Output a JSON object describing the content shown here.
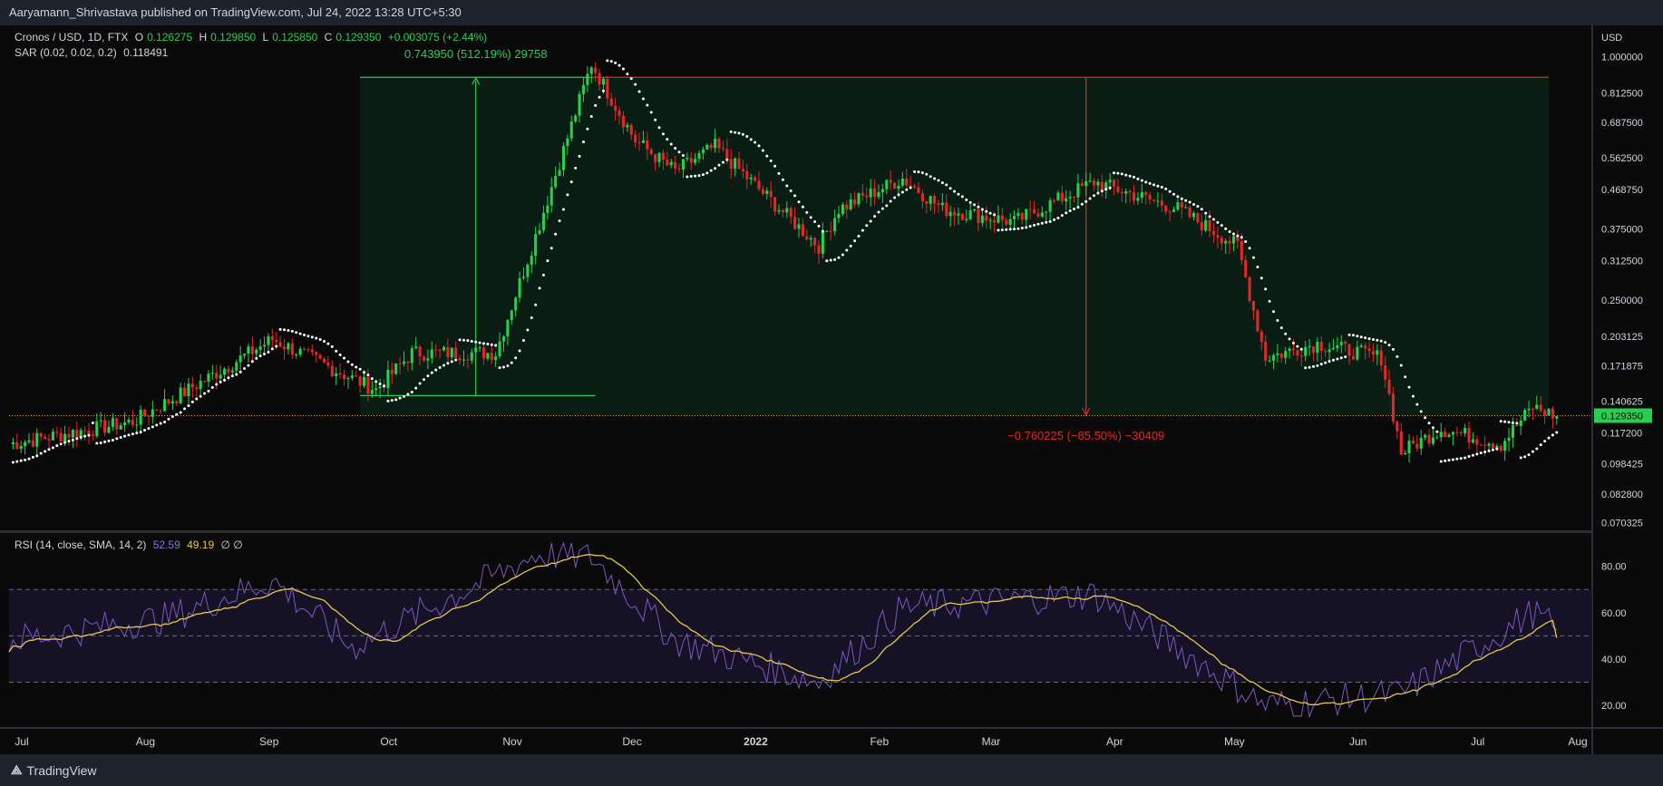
{
  "header": {
    "published": "Aaryamann_Shrivastava published on TradingView.com, Jul 24, 2022 13:28 UTC+5:30"
  },
  "legend": {
    "symbol": "Cronos / USD, 1D, FTX",
    "o_label": "O",
    "o_value": "0.126275",
    "h_label": "H",
    "h_value": "0.129850",
    "l_label": "L",
    "l_value": "0.125850",
    "c_label": "C",
    "c_value": "0.129350",
    "change": "+0.003075 (+2.44%)",
    "sar_label": "SAR (0.02, 0.02, 0.2)",
    "sar_value": "0.118491",
    "rsi_label": "RSI (14, close, SMA, 14, 2)",
    "rsi_value": "52.59",
    "rsi_ma_value": "49.19",
    "rsi_extra": "∅ ∅"
  },
  "price_axis": {
    "currency": "USD",
    "ticks": [
      "1.000000",
      "0.812500",
      "0.687500",
      "0.562500",
      "0.468750",
      "0.375000",
      "0.312500",
      "0.250000",
      "0.203125",
      "0.171875",
      "0.140625",
      "0.117200",
      "0.098425",
      "0.082800",
      "0.070325"
    ],
    "last_price": "0.129350"
  },
  "rsi_axis": {
    "ticks": [
      "80.00",
      "60.00",
      "40.00",
      "20.00"
    ]
  },
  "time_axis": {
    "ticks": [
      "Jul",
      "Aug",
      "Sep",
      "Oct",
      "Nov",
      "Dec",
      "2022",
      "Feb",
      "Mar",
      "Apr",
      "May",
      "Jun",
      "Jul",
      "Aug"
    ]
  },
  "annotations": {
    "up_measure": "0.743950 (512.19%) 29758",
    "down_measure": "−0.760225 (−85.50%) −30409"
  },
  "footer": {
    "brand": "TradingView"
  },
  "colors": {
    "background": "#131722",
    "up": "#26d04e",
    "down": "#e32626",
    "sar": "#ffffff",
    "rsi": "#7e57c2",
    "rsi_ma": "#e6c84a"
  },
  "chart_data": {
    "type": "candlestick",
    "symbol": "Cronos / USD",
    "interval": "1D",
    "scale": "log",
    "ylim": [
      0.068,
      1.1
    ],
    "x_range": [
      "2021-07-01",
      "2022-08-01"
    ],
    "key_points": [
      {
        "date": "2021-07-01",
        "close": 0.11
      },
      {
        "date": "2021-08-01",
        "close": 0.125
      },
      {
        "date": "2021-08-15",
        "close": 0.15
      },
      {
        "date": "2021-09-05",
        "close": 0.2
      },
      {
        "date": "2021-09-25",
        "close": 0.16
      },
      {
        "date": "2021-10-01",
        "close": 0.15
      },
      {
        "date": "2021-10-10",
        "close": 0.185
      },
      {
        "date": "2021-10-31",
        "close": 0.185
      },
      {
        "date": "2021-11-10",
        "close": 0.36
      },
      {
        "date": "2021-11-24",
        "close": 0.96
      },
      {
        "date": "2021-12-05",
        "close": 0.62
      },
      {
        "date": "2021-12-15",
        "close": 0.52
      },
      {
        "date": "2021-12-25",
        "close": 0.6
      },
      {
        "date": "2022-01-05",
        "close": 0.47
      },
      {
        "date": "2022-01-20",
        "close": 0.34
      },
      {
        "date": "2022-01-25",
        "close": 0.42
      },
      {
        "date": "2022-02-10",
        "close": 0.5
      },
      {
        "date": "2022-02-20",
        "close": 0.42
      },
      {
        "date": "2022-03-10",
        "close": 0.39
      },
      {
        "date": "2022-03-30",
        "close": 0.49
      },
      {
        "date": "2022-04-20",
        "close": 0.42
      },
      {
        "date": "2022-05-05",
        "close": 0.34
      },
      {
        "date": "2022-05-12",
        "close": 0.18
      },
      {
        "date": "2022-05-25",
        "close": 0.195
      },
      {
        "date": "2022-06-10",
        "close": 0.18
      },
      {
        "date": "2022-06-15",
        "close": 0.105
      },
      {
        "date": "2022-06-25",
        "close": 0.12
      },
      {
        "date": "2022-07-10",
        "close": 0.11
      },
      {
        "date": "2022-07-18",
        "close": 0.136
      },
      {
        "date": "2022-07-24",
        "close": 0.129
      }
    ],
    "measures": [
      {
        "from_date": "2021-09-27",
        "to_date": "2021-11-24",
        "from_price": 0.145,
        "to_price": 0.889,
        "text": "0.743950 (512.19%) 29758"
      },
      {
        "from_date": "2021-11-24",
        "to_date": "2022-03-28",
        "from_price": 0.889,
        "to_price": 0.129,
        "text": "−0.760225 (−85.50%) −30409"
      }
    ],
    "rsi": {
      "period": 14,
      "ma_period": 14,
      "levels": [
        70,
        50,
        30
      ],
      "ylim": [
        13,
        92
      ],
      "key_points": [
        {
          "date": "2021-07-01",
          "rsi": 48
        },
        {
          "date": "2021-08-10",
          "rsi": 58
        },
        {
          "date": "2021-09-05",
          "rsi": 74
        },
        {
          "date": "2021-09-25",
          "rsi": 45
        },
        {
          "date": "2021-11-10",
          "rsi": 85
        },
        {
          "date": "2021-11-24",
          "rsi": 84
        },
        {
          "date": "2021-12-15",
          "rsi": 48
        },
        {
          "date": "2022-01-20",
          "rsi": 30
        },
        {
          "date": "2022-02-10",
          "rsi": 62
        },
        {
          "date": "2022-03-30",
          "rsi": 68
        },
        {
          "date": "2022-05-12",
          "rsi": 20
        },
        {
          "date": "2022-06-15",
          "rsi": 25
        },
        {
          "date": "2022-07-18",
          "rsi": 60
        },
        {
          "date": "2022-07-24",
          "rsi": 52.59
        }
      ],
      "last_rsi": 52.59,
      "last_ma": 49.19
    }
  }
}
